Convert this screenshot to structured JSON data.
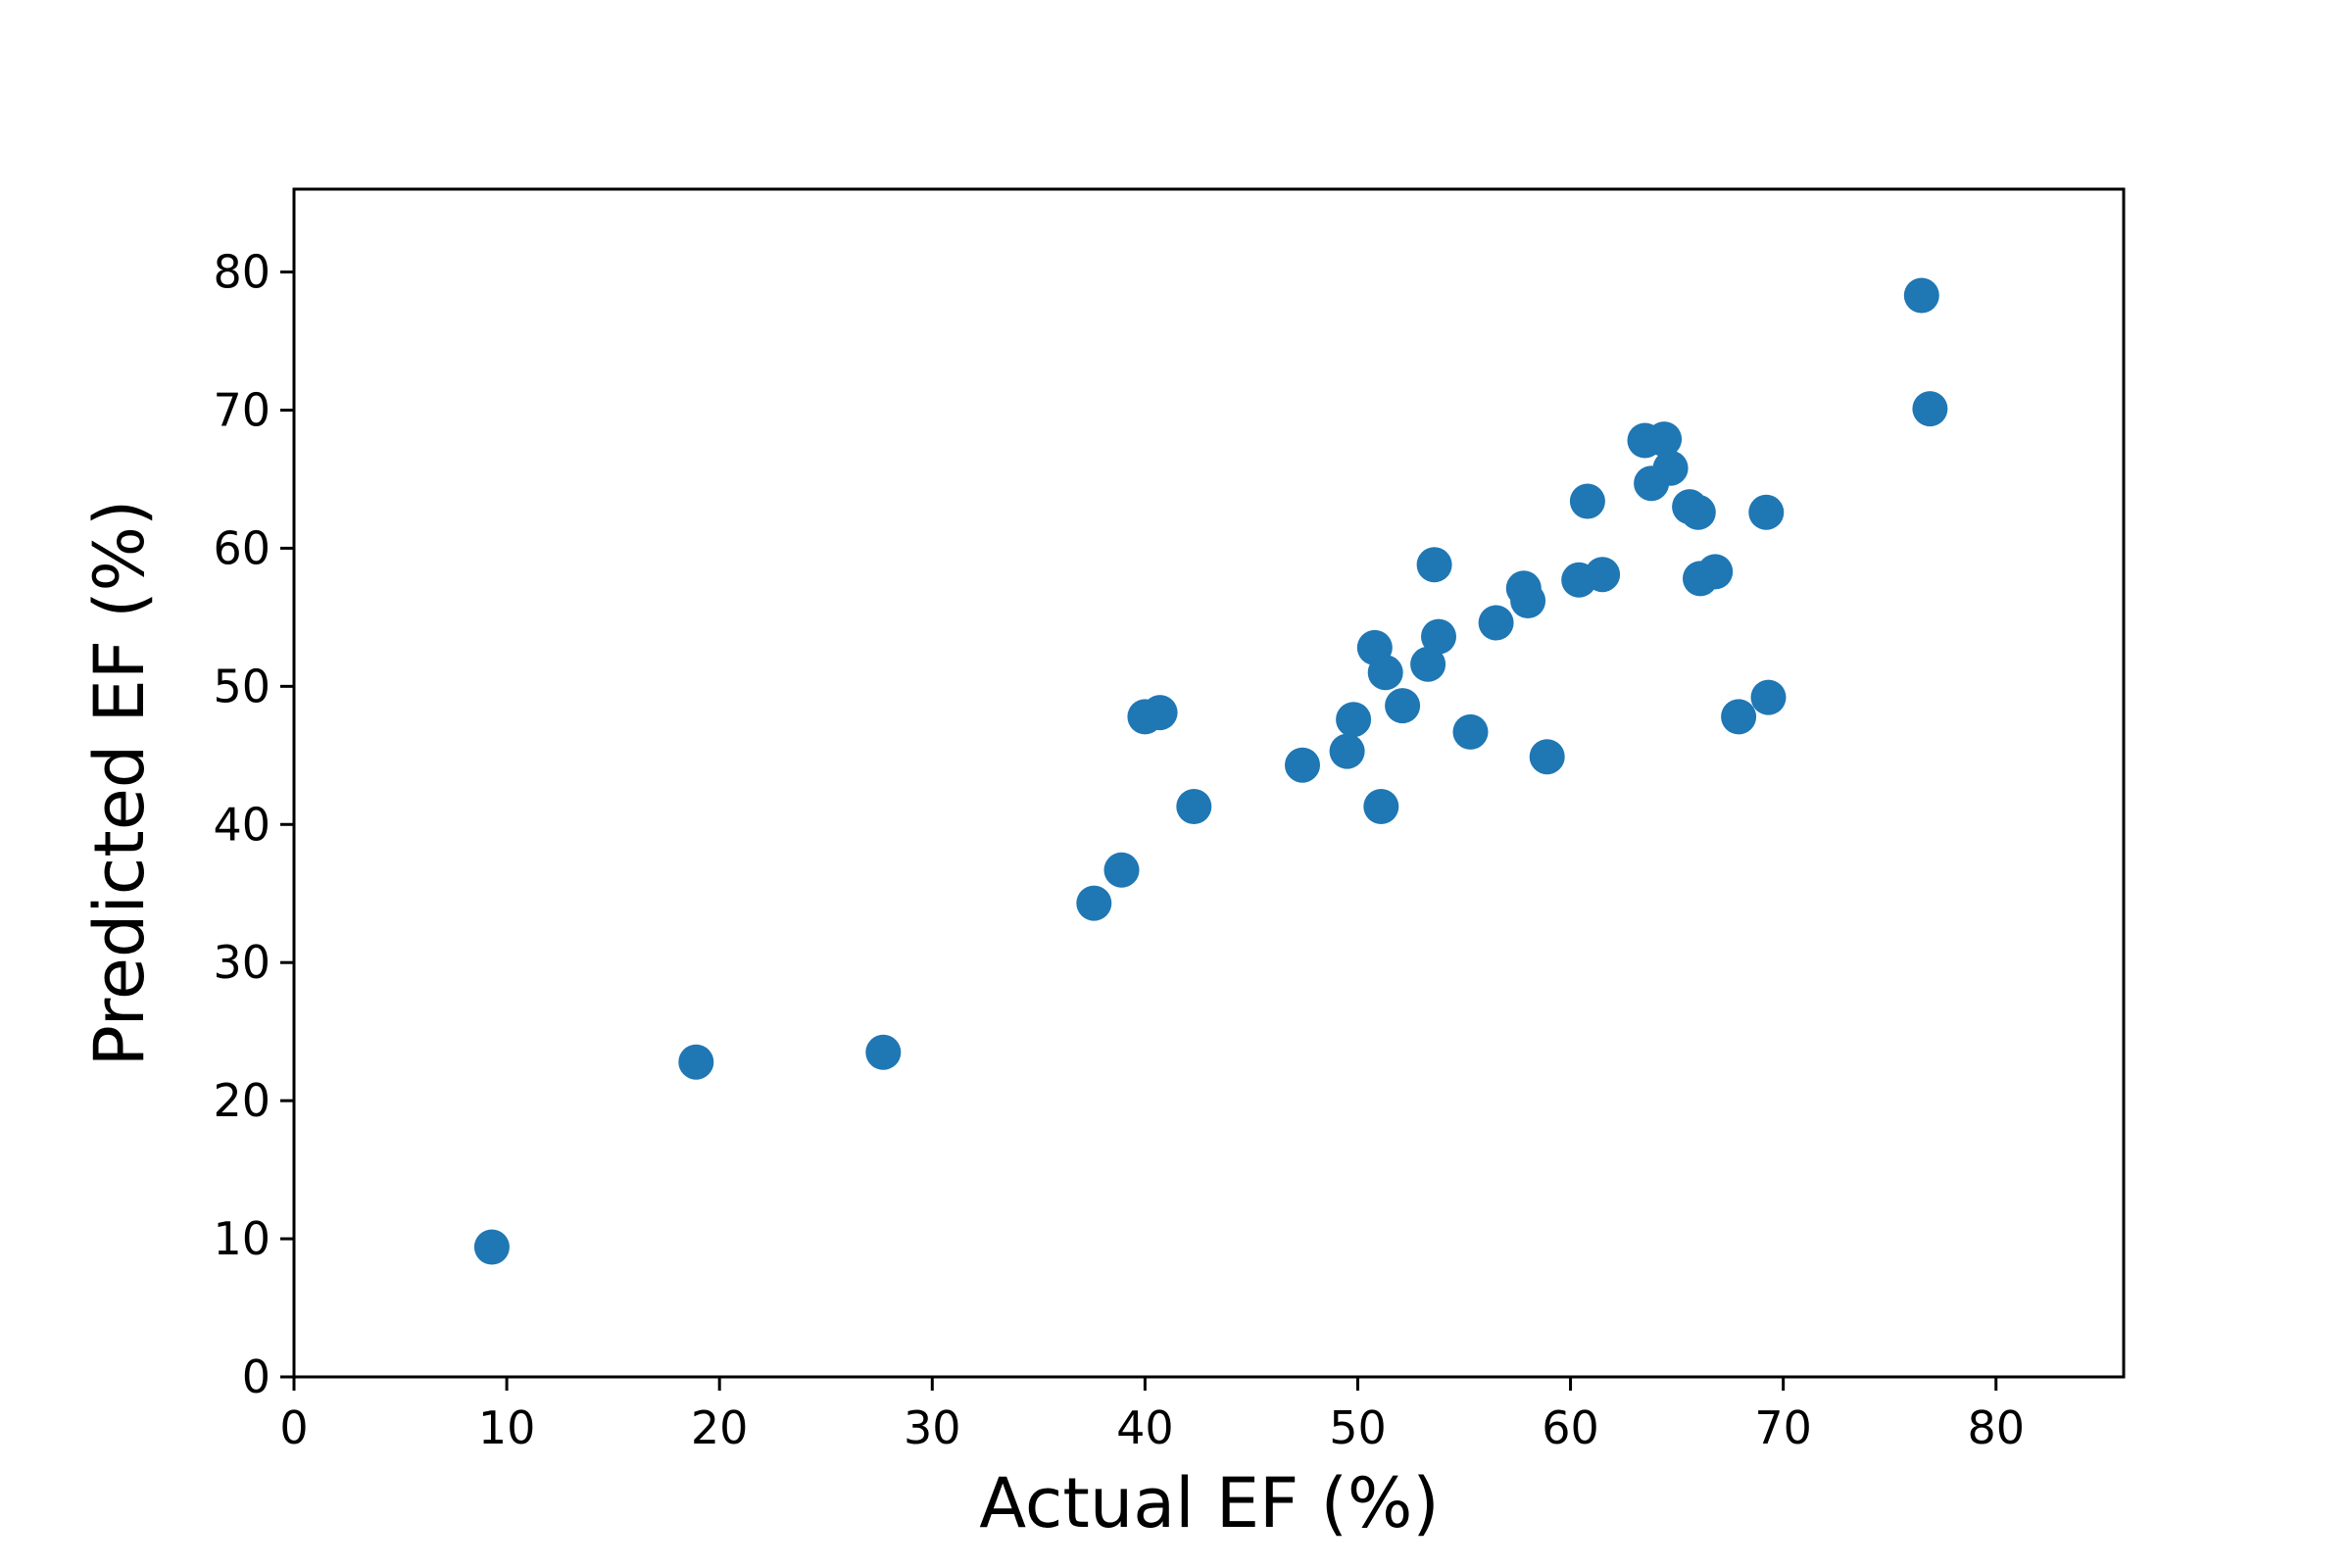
{
  "chart_data": {
    "type": "scatter",
    "title": "",
    "xlabel": "Actual EF (%)",
    "ylabel": "Predicted EF (%)",
    "xlim": [
      0,
      86
    ],
    "ylim": [
      0,
      86
    ],
    "xticks": [
      0,
      10,
      20,
      30,
      40,
      50,
      60,
      70,
      80
    ],
    "yticks": [
      0,
      10,
      20,
      30,
      40,
      50,
      60,
      70,
      80
    ],
    "grid": false,
    "legend": "none",
    "marker_color": "#1f77b4",
    "points": [
      {
        "x": 9.3,
        "y": 9.4
      },
      {
        "x": 18.9,
        "y": 22.8
      },
      {
        "x": 27.7,
        "y": 23.5
      },
      {
        "x": 37.6,
        "y": 34.3
      },
      {
        "x": 38.9,
        "y": 36.7
      },
      {
        "x": 40.0,
        "y": 47.8
      },
      {
        "x": 40.7,
        "y": 48.1
      },
      {
        "x": 42.3,
        "y": 41.3
      },
      {
        "x": 47.4,
        "y": 44.3
      },
      {
        "x": 49.5,
        "y": 45.3
      },
      {
        "x": 49.8,
        "y": 47.6
      },
      {
        "x": 50.8,
        "y": 52.8
      },
      {
        "x": 51.1,
        "y": 41.3
      },
      {
        "x": 51.3,
        "y": 51.0
      },
      {
        "x": 52.1,
        "y": 48.6
      },
      {
        "x": 53.3,
        "y": 51.6
      },
      {
        "x": 53.6,
        "y": 58.8
      },
      {
        "x": 53.8,
        "y": 53.6
      },
      {
        "x": 55.3,
        "y": 46.7
      },
      {
        "x": 56.5,
        "y": 54.6
      },
      {
        "x": 57.8,
        "y": 57.1
      },
      {
        "x": 58.0,
        "y": 56.2
      },
      {
        "x": 58.9,
        "y": 44.9
      },
      {
        "x": 60.4,
        "y": 57.7
      },
      {
        "x": 60.8,
        "y": 63.4
      },
      {
        "x": 61.5,
        "y": 58.1
      },
      {
        "x": 63.5,
        "y": 67.8
      },
      {
        "x": 63.8,
        "y": 64.7
      },
      {
        "x": 64.4,
        "y": 67.9
      },
      {
        "x": 64.7,
        "y": 65.8
      },
      {
        "x": 65.6,
        "y": 63.0
      },
      {
        "x": 66.0,
        "y": 62.6
      },
      {
        "x": 66.1,
        "y": 57.8
      },
      {
        "x": 66.8,
        "y": 58.3
      },
      {
        "x": 67.9,
        "y": 47.8
      },
      {
        "x": 69.2,
        "y": 62.6
      },
      {
        "x": 69.3,
        "y": 49.2
      },
      {
        "x": 76.5,
        "y": 78.3
      },
      {
        "x": 76.9,
        "y": 70.1
      }
    ]
  }
}
